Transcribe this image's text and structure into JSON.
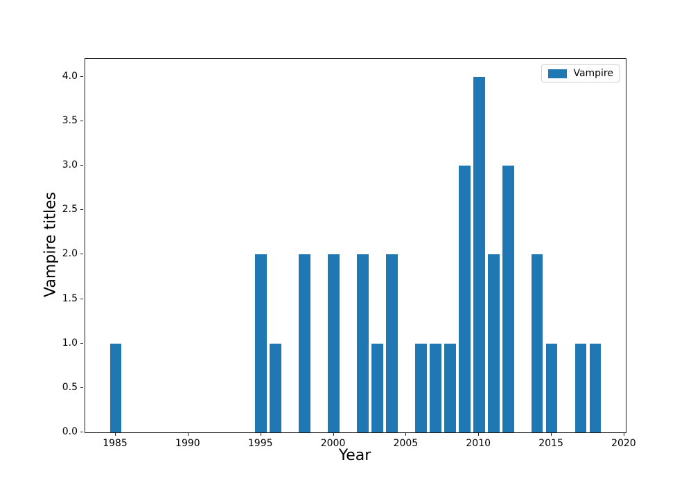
{
  "figure": {
    "background": "#ffffff"
  },
  "chart_data": {
    "type": "bar",
    "title": "",
    "xlabel": "Year",
    "ylabel": "Vampire titles",
    "legend_label": "Vampire",
    "legend_position": "upper right",
    "bar_color": "#1f77b4",
    "bar_width": 0.8,
    "x": [
      1985,
      1995,
      1996,
      1998,
      2000,
      2002,
      2003,
      2004,
      2006,
      2007,
      2008,
      2009,
      2010,
      2011,
      2012,
      2014,
      2015,
      2017,
      2018
    ],
    "values": [
      1,
      2,
      1,
      2,
      2,
      2,
      1,
      2,
      1,
      1,
      1,
      3,
      4,
      2,
      3,
      2,
      1,
      1,
      1
    ],
    "xlim": [
      1982.9,
      2020.1
    ],
    "ylim": [
      0,
      4.2
    ],
    "xticks": [
      1985,
      1990,
      1995,
      2000,
      2005,
      2010,
      2015,
      2020
    ],
    "yticks": [
      0.0,
      0.5,
      1.0,
      1.5,
      2.0,
      2.5,
      3.0,
      3.5,
      4.0
    ],
    "grid": false
  }
}
